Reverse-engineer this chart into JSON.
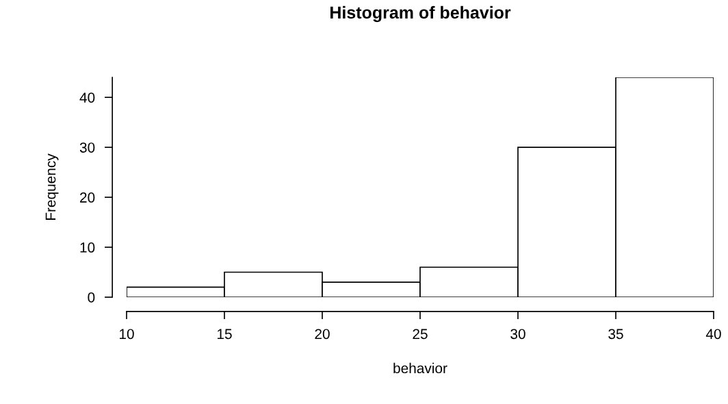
{
  "chart_data": {
    "type": "histogram",
    "title": "Histogram of behavior",
    "xlabel": "behavior",
    "ylabel": "Frequency",
    "bins": [
      10,
      15,
      20,
      25,
      30,
      35,
      40
    ],
    "values": [
      2,
      5,
      3,
      6,
      30,
      44
    ],
    "color": "#ffffff",
    "xlim": [
      10,
      40
    ],
    "xticks": [
      10,
      15,
      20,
      25,
      30,
      35,
      40
    ],
    "ylim": [
      0,
      44
    ],
    "yticks": [
      0,
      10,
      20,
      30,
      40
    ],
    "grid": false
  }
}
